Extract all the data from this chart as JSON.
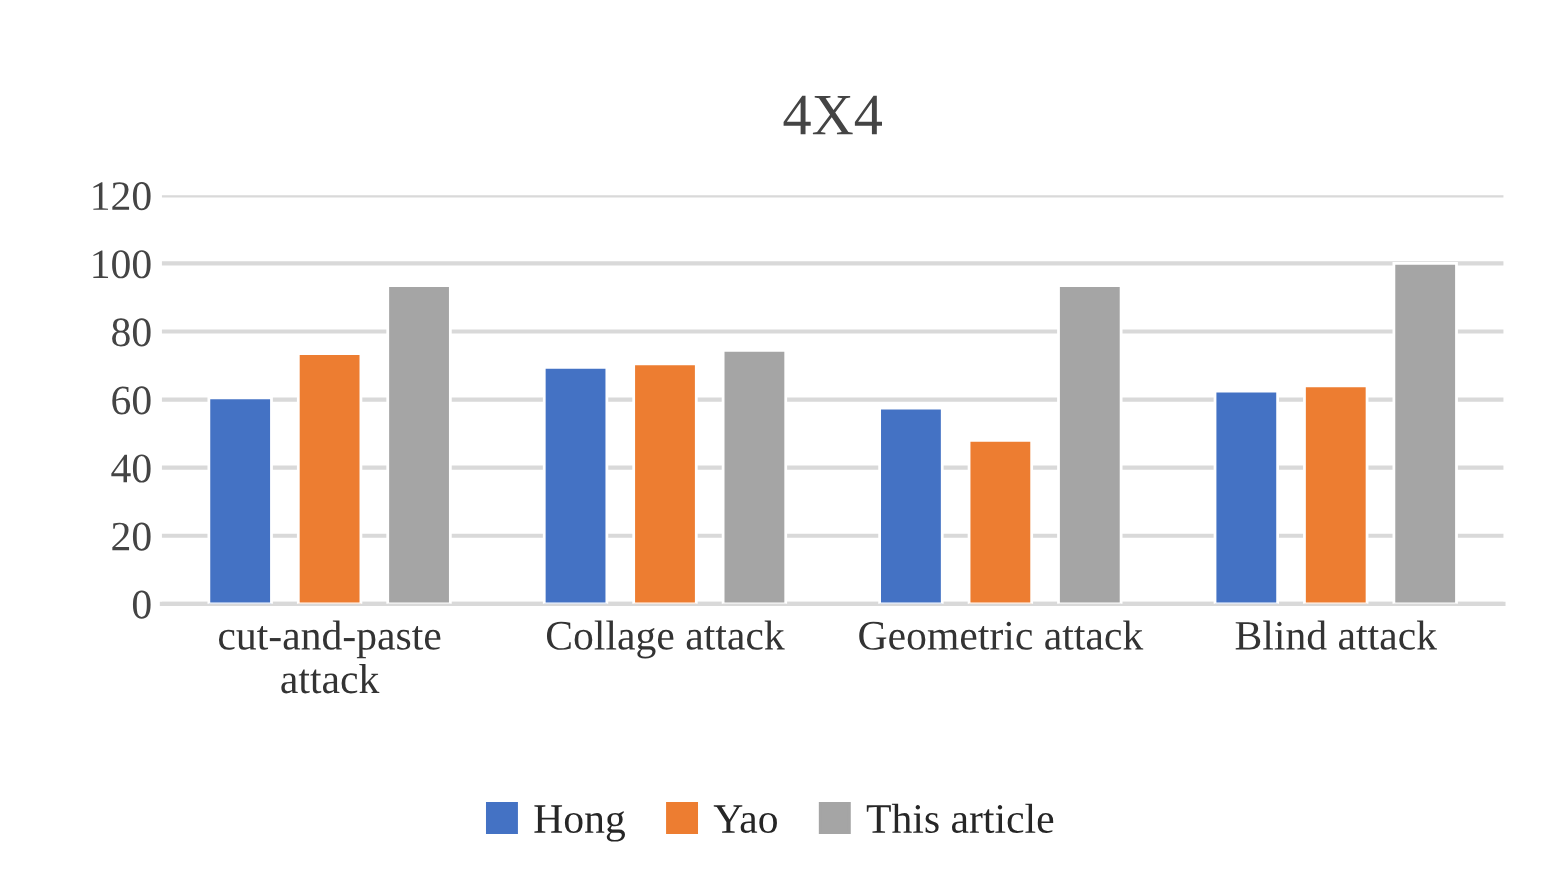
{
  "chart_data": {
    "type": "bar",
    "title": "4X4",
    "categories": [
      "cut-and-paste\nattack",
      "Collage attack",
      "Geometric attack",
      "Blind attack"
    ],
    "series": [
      {
        "name": "Hong",
        "color": "#4472c4",
        "values": [
          60.5,
          69.5,
          57.5,
          62.5
        ]
      },
      {
        "name": "Yao",
        "color": "#ed7d31",
        "values": [
          73.5,
          70.5,
          48,
          64
        ]
      },
      {
        "name": "This article",
        "color": "#a5a5a5",
        "values": [
          93.5,
          74.5,
          93.5,
          100
        ]
      }
    ],
    "ylim": [
      0,
      120
    ],
    "yticks": [
      0,
      20,
      40,
      60,
      80,
      100,
      120
    ],
    "grid": "y",
    "legend": "bottom"
  }
}
